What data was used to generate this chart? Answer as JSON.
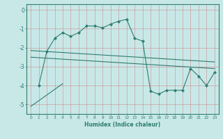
{
  "xlabel": "Humidex (Indice chaleur)",
  "ylabel": "",
  "background_color": "#c8e8e8",
  "grid_color": "#d08080",
  "line_color": "#2e7d6e",
  "xlim": [
    -0.5,
    23.5
  ],
  "ylim": [
    -5.5,
    0.3
  ],
  "xticks": [
    0,
    1,
    2,
    3,
    4,
    5,
    6,
    7,
    8,
    9,
    10,
    11,
    12,
    13,
    14,
    15,
    16,
    17,
    18,
    19,
    20,
    21,
    22,
    23
  ],
  "yticks": [
    -5,
    -4,
    -3,
    -2,
    -1,
    0
  ],
  "series": [
    {
      "x": [
        1,
        2,
        3,
        4,
        5,
        6,
        7,
        8,
        9,
        10,
        11,
        12,
        13,
        14,
        15,
        16,
        17,
        18,
        19,
        20,
        21,
        22,
        23
      ],
      "y": [
        -4.0,
        -2.2,
        -1.5,
        -1.2,
        -1.4,
        -1.2,
        -0.85,
        -0.85,
        -0.95,
        -0.75,
        -0.6,
        -0.5,
        -1.5,
        -1.65,
        -4.3,
        -4.45,
        -4.25,
        -4.25,
        -4.25,
        -3.1,
        -3.5,
        -4.0,
        -3.3
      ],
      "marker": "D",
      "linestyle": "-"
    },
    {
      "x": [
        0,
        23
      ],
      "y": [
        -2.15,
        -2.75
      ],
      "marker": null,
      "linestyle": "-"
    },
    {
      "x": [
        0,
        23
      ],
      "y": [
        -2.5,
        -3.1
      ],
      "marker": null,
      "linestyle": "-"
    },
    {
      "x": [
        0,
        4
      ],
      "y": [
        -5.1,
        -3.9
      ],
      "marker": null,
      "linestyle": "-"
    }
  ]
}
